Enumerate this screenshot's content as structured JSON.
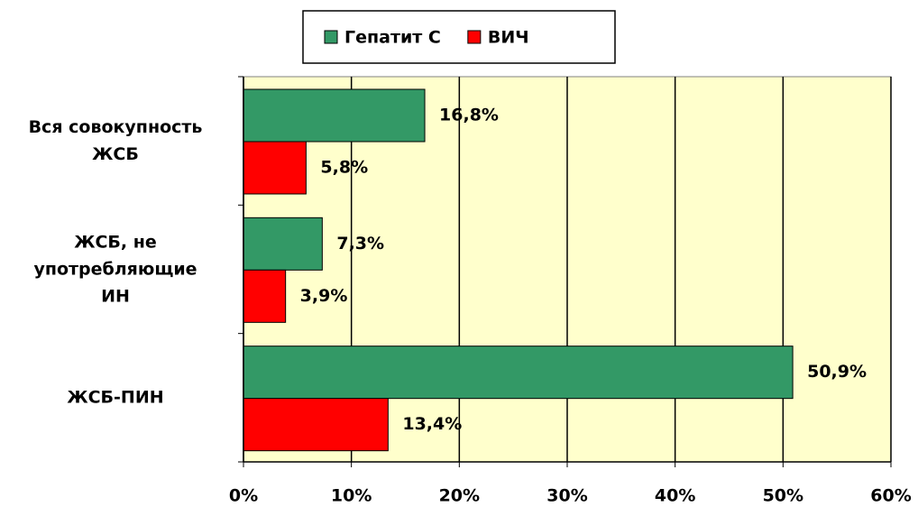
{
  "chart_data": {
    "type": "hbar",
    "categories": [
      "Вся совокупность\nЖСБ",
      "ЖСБ, не\nупотребляющие\nИН",
      "ЖСБ-ПИН"
    ],
    "series": [
      {
        "name": "Гепатит С",
        "color": "#339966",
        "values": [
          16.8,
          7.3,
          50.9
        ],
        "value_labels": [
          "16,8%",
          "7,3%",
          "50,9%"
        ]
      },
      {
        "name": "ВИЧ",
        "color": "#ff0000",
        "values": [
          5.8,
          3.9,
          13.4
        ],
        "value_labels": [
          "5,8%",
          "3,9%",
          "13,4%"
        ]
      }
    ],
    "xlim": [
      0,
      60
    ],
    "xticks": [
      {
        "value": 0,
        "label": "0%"
      },
      {
        "value": 10,
        "label": "10%"
      },
      {
        "value": 20,
        "label": "20%"
      },
      {
        "value": 30,
        "label": "30%"
      },
      {
        "value": 40,
        "label": "40%"
      },
      {
        "value": 50,
        "label": "50%"
      },
      {
        "value": 60,
        "label": "60%"
      }
    ],
    "grid": true,
    "legend": "top",
    "plot_background": "#ffffcc"
  }
}
